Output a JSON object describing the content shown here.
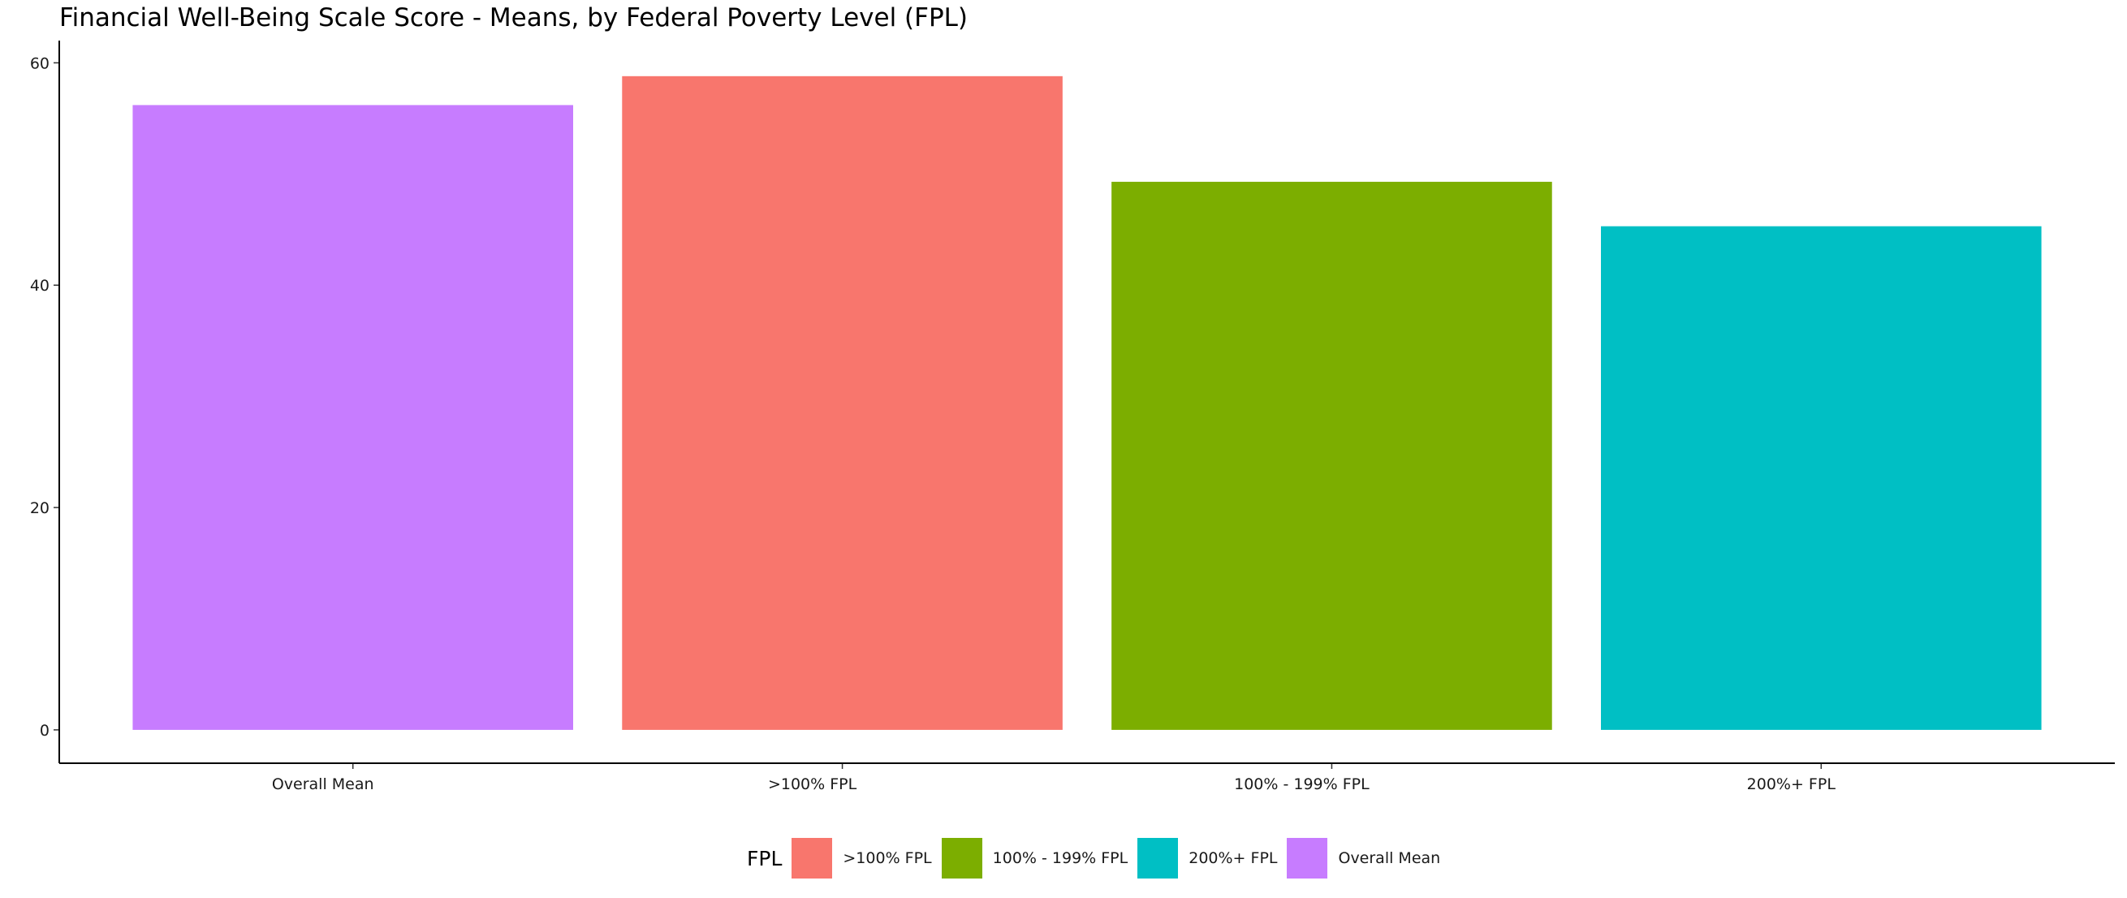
{
  "chart_data": {
    "type": "bar",
    "title": "Financial Well-Being Scale Score - Means, by Federal Poverty Level (FPL)",
    "xlabel": "",
    "ylabel": "",
    "categories": [
      "Overall Mean",
      ">100% FPL",
      "100% - 199% FPL",
      "200%+ FPL"
    ],
    "values": [
      56.2,
      58.8,
      49.3,
      45.3
    ],
    "colors": [
      "#C77CFF",
      "#F8766D",
      "#7CAE00",
      "#00BFC4"
    ],
    "ylim": [
      -3,
      62
    ],
    "yticks": [
      0,
      20,
      40,
      60
    ],
    "grid": false,
    "legend": {
      "title": "FPL",
      "position": "bottom",
      "items": [
        {
          "label": ">100% FPL",
          "color": "#F8766D"
        },
        {
          "label": "100% - 199% FPL",
          "color": "#7CAE00"
        },
        {
          "label": "200%+ FPL",
          "color": "#00BFC4"
        },
        {
          "label": "Overall Mean",
          "color": "#C77CFF"
        }
      ]
    }
  }
}
